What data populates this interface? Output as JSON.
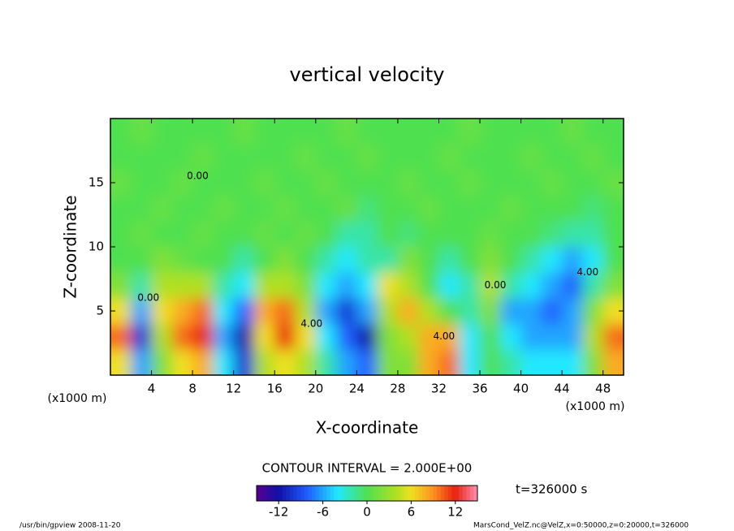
{
  "chart_data": {
    "type": "heatmap",
    "title": "vertical velocity",
    "x_label": "X-coordinate",
    "y_label": "Z-coordinate",
    "x_unit": "(x1000 m)",
    "y_unit": "(x1000 m)",
    "contour_note": "CONTOUR INTERVAL = 2.000E+00",
    "time_label": "t=326000 s",
    "footer_left": "/usr/bin/gpview  2008-11-20",
    "footer_right": "MarsCond_VelZ.nc@VelZ,x=0:50000,z=0:20000,t=326000",
    "xlim": [
      0,
      50
    ],
    "ylim": [
      0,
      20
    ],
    "xticks": [
      4,
      8,
      12,
      16,
      20,
      24,
      28,
      32,
      36,
      40,
      44,
      48
    ],
    "yticks": [
      5,
      10,
      15
    ],
    "x": [
      1,
      3,
      5,
      7,
      9,
      11,
      13,
      15,
      17,
      19,
      21,
      23,
      25,
      27,
      29,
      31,
      33,
      35,
      37,
      39,
      41,
      43,
      45,
      47,
      49
    ],
    "y": [
      1,
      3,
      5,
      7,
      9,
      11,
      13,
      15,
      17,
      19
    ],
    "z": [
      [
        6,
        -6,
        2,
        6,
        8,
        -4,
        -10,
        4,
        6,
        4,
        -2,
        -6,
        -8,
        2,
        2,
        8,
        10,
        -4,
        0,
        -2,
        -4,
        -4,
        -4,
        2,
        8
      ],
      [
        10,
        -10,
        4,
        10,
        12,
        -6,
        -12,
        6,
        12,
        6,
        -4,
        -8,
        -12,
        2,
        4,
        8,
        8,
        -4,
        0,
        -4,
        -6,
        -6,
        -6,
        4,
        10
      ],
      [
        6,
        -6,
        6,
        8,
        10,
        -4,
        -8,
        8,
        10,
        4,
        -6,
        -10,
        -6,
        4,
        8,
        4,
        0,
        -2,
        2,
        -6,
        -6,
        -8,
        -6,
        2,
        6
      ],
      [
        2,
        -2,
        4,
        4,
        4,
        -2,
        -4,
        4,
        4,
        2,
        -4,
        -6,
        -4,
        6,
        4,
        0,
        -4,
        -2,
        4,
        -2,
        -4,
        -6,
        -8,
        -2,
        2
      ],
      [
        0,
        0,
        2,
        1,
        0,
        0,
        -2,
        0,
        2,
        0,
        -2,
        -4,
        -2,
        -2,
        2,
        0,
        -2,
        0,
        2,
        0,
        -2,
        -4,
        -6,
        -4,
        0
      ],
      [
        0,
        1,
        0,
        0,
        1,
        0,
        0,
        1,
        0,
        1,
        0,
        -2,
        -2,
        0,
        -1,
        0,
        0,
        0,
        1,
        0,
        0,
        -1,
        -2,
        -2,
        0
      ],
      [
        0,
        0,
        1,
        0,
        0,
        1,
        0,
        0,
        1,
        0,
        0,
        1,
        -1,
        0,
        0,
        1,
        0,
        0,
        0,
        1,
        0,
        0,
        0,
        -1,
        0
      ],
      [
        1,
        0,
        0,
        1,
        0,
        0,
        0,
        1,
        0,
        0,
        1,
        0,
        0,
        0,
        1,
        0,
        0,
        1,
        0,
        0,
        0,
        1,
        0,
        0,
        1
      ],
      [
        0,
        0,
        0,
        0,
        1,
        0,
        0,
        0,
        0,
        1,
        0,
        0,
        1,
        0,
        0,
        0,
        1,
        0,
        0,
        0,
        1,
        0,
        0,
        1,
        0
      ],
      [
        0,
        1,
        0,
        0,
        0,
        0,
        1,
        0,
        0,
        0,
        0,
        1,
        0,
        0,
        0,
        0,
        0,
        1,
        0,
        0,
        0,
        0,
        1,
        0,
        0
      ]
    ],
    "contour_labels": [
      {
        "text": "0.00",
        "x": 8.5,
        "z": 15.5
      },
      {
        "text": "4.00",
        "x": 19.6,
        "z": 4
      },
      {
        "text": "4.00",
        "x": 32.5,
        "z": 3
      },
      {
        "text": "0.00",
        "x": 3.7,
        "z": 6
      },
      {
        "text": "0.00",
        "x": 37.5,
        "z": 7
      },
      {
        "text": "4.00",
        "x": 46.5,
        "z": 8
      }
    ],
    "colorscale": [
      {
        "value": -15,
        "color": "#5a0090"
      },
      {
        "value": -12,
        "color": "#1010a8"
      },
      {
        "value": -8,
        "color": "#2060ff"
      },
      {
        "value": -4,
        "color": "#20e8ff"
      },
      {
        "value": 0,
        "color": "#50e050"
      },
      {
        "value": 4,
        "color": "#b0e020"
      },
      {
        "value": 6,
        "color": "#f0e020"
      },
      {
        "value": 9,
        "color": "#ff9020"
      },
      {
        "value": 12,
        "color": "#e82010"
      },
      {
        "value": 15,
        "color": "#ff90b0"
      }
    ],
    "clim": [
      -15,
      15
    ],
    "cticks": [
      -12,
      -6,
      0,
      6,
      12
    ]
  }
}
